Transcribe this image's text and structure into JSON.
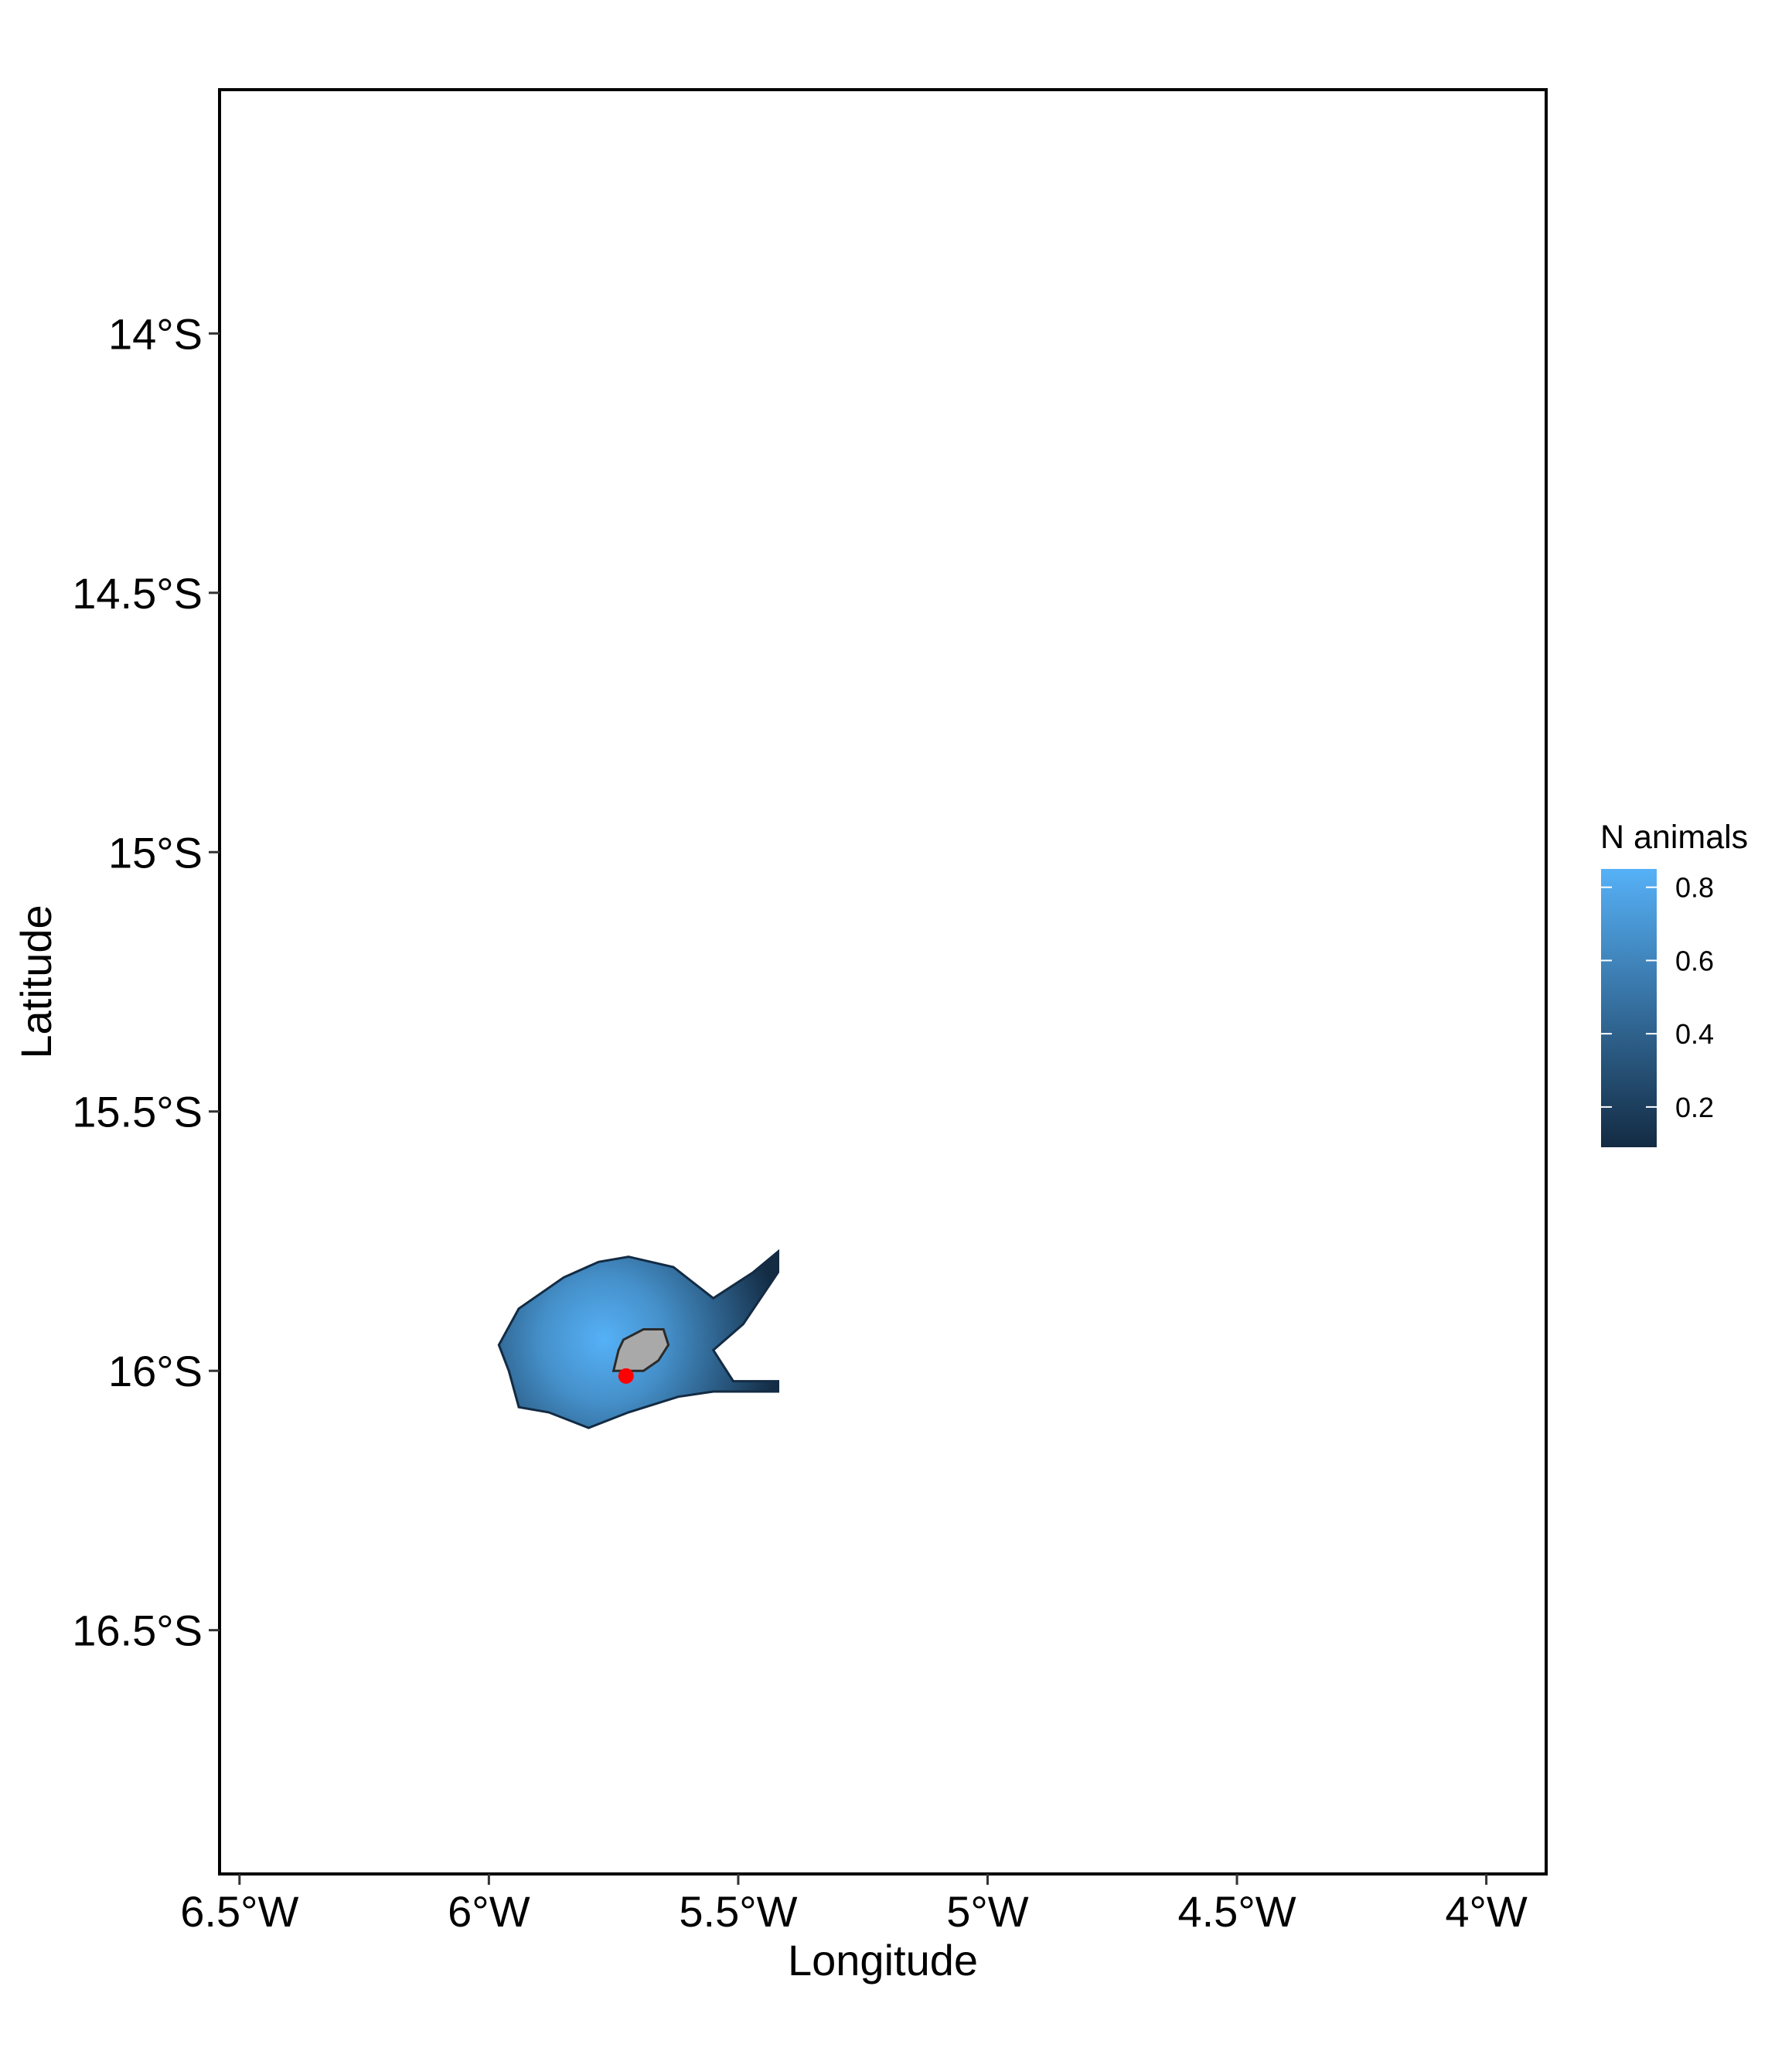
{
  "chart_data": {
    "type": "map",
    "xlabel": "Longitude",
    "ylabel": "Latitude",
    "x_ticks": [
      {
        "value": -6.5,
        "label": "6.5°W"
      },
      {
        "value": -6.0,
        "label": "6°W"
      },
      {
        "value": -5.5,
        "label": "5.5°W"
      },
      {
        "value": -5.0,
        "label": "5°W"
      },
      {
        "value": -4.5,
        "label": "4.5°W"
      },
      {
        "value": -4.0,
        "label": "4°W"
      }
    ],
    "y_ticks": [
      {
        "value": -14.0,
        "label": "14°S"
      },
      {
        "value": -14.5,
        "label": "14.5°S"
      },
      {
        "value": -15.0,
        "label": "15°S"
      },
      {
        "value": -15.5,
        "label": "15.5°S"
      },
      {
        "value": -16.0,
        "label": "16°S"
      },
      {
        "value": -16.5,
        "label": "16.5°S"
      }
    ],
    "xlim": [
      -6.54,
      -3.88
    ],
    "ylim": [
      -16.97,
      -13.53
    ],
    "grid": false,
    "legend": {
      "title": "N animals",
      "placement": "right",
      "ticks": [
        {
          "value": 0.8,
          "label": "0.8"
        },
        {
          "value": 0.6,
          "label": "0.6"
        },
        {
          "value": 0.4,
          "label": "0.4"
        },
        {
          "value": 0.2,
          "label": "0.2"
        }
      ],
      "range": [
        0.09,
        0.85
      ],
      "color_low": "#132B43",
      "color_high": "#56B1F7"
    },
    "density_region": {
      "outline": [
        [
          -5.94,
          -15.88
        ],
        [
          -5.85,
          -15.82
        ],
        [
          -5.78,
          -15.79
        ],
        [
          -5.72,
          -15.78
        ],
        [
          -5.63,
          -15.8
        ],
        [
          -5.55,
          -15.86
        ],
        [
          -5.47,
          -15.81
        ],
        [
          -5.42,
          -15.77
        ],
        [
          -5.42,
          -15.81
        ],
        [
          -5.49,
          -15.91
        ],
        [
          -5.55,
          -15.96
        ],
        [
          -5.51,
          -16.02
        ],
        [
          -5.42,
          -16.02
        ],
        [
          -5.42,
          -16.04
        ],
        [
          -5.55,
          -16.04
        ],
        [
          -5.62,
          -16.05
        ],
        [
          -5.72,
          -16.08
        ],
        [
          -5.8,
          -16.11
        ],
        [
          -5.88,
          -16.08
        ],
        [
          -5.94,
          -16.07
        ],
        [
          -5.96,
          -16.0
        ],
        [
          -5.98,
          -15.95
        ]
      ],
      "peak": {
        "lon": -5.77,
        "lat": -15.94,
        "value": 0.85
      },
      "edge_value": 0.09
    },
    "grey_polygon": [
      [
        -5.73,
        -15.94
      ],
      [
        -5.69,
        -15.92
      ],
      [
        -5.65,
        -15.92
      ],
      [
        -5.64,
        -15.95
      ],
      [
        -5.66,
        -15.98
      ],
      [
        -5.69,
        -16.0
      ],
      [
        -5.75,
        -16.0
      ],
      [
        -5.74,
        -15.96
      ]
    ],
    "point": {
      "lon": -5.725,
      "lat": -16.01,
      "color": "#FF0000"
    }
  }
}
